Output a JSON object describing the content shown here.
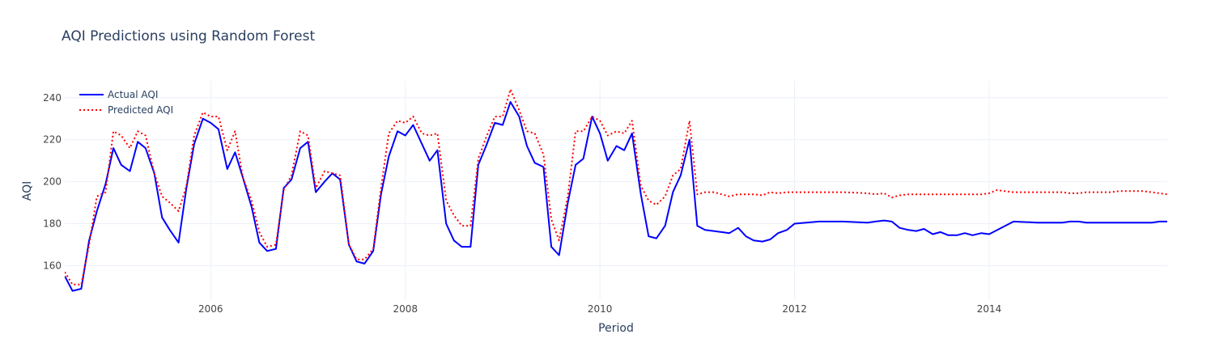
{
  "chart_data": {
    "type": "line",
    "title": "AQI Predictions using Random Forest",
    "xlabel": "Period",
    "ylabel": "AQI",
    "xlim": [
      2004.5,
      2015.83
    ],
    "ylim": [
      144,
      248
    ],
    "x_ticks": [
      2006,
      2008,
      2010,
      2012,
      2014
    ],
    "y_ticks": [
      160,
      180,
      200,
      220,
      240
    ],
    "grid": true,
    "legend_position": "top-left",
    "series": [
      {
        "name": "Actual AQI",
        "color": "#0000ff",
        "dash": "solid",
        "x": [
          2004.5,
          2004.58,
          2004.67,
          2004.75,
          2004.83,
          2004.92,
          2005.0,
          2005.08,
          2005.17,
          2005.25,
          2005.33,
          2005.42,
          2005.5,
          2005.58,
          2005.67,
          2005.75,
          2005.83,
          2005.92,
          2006.0,
          2006.08,
          2006.17,
          2006.25,
          2006.33,
          2006.42,
          2006.5,
          2006.58,
          2006.67,
          2006.75,
          2006.83,
          2006.92,
          2007.0,
          2007.08,
          2007.17,
          2007.25,
          2007.33,
          2007.42,
          2007.5,
          2007.58,
          2007.67,
          2007.75,
          2007.83,
          2007.92,
          2008.0,
          2008.08,
          2008.17,
          2008.25,
          2008.33,
          2008.42,
          2008.5,
          2008.58,
          2008.67,
          2008.75,
          2008.83,
          2008.92,
          2009.0,
          2009.08,
          2009.17,
          2009.25,
          2009.33,
          2009.42,
          2009.5,
          2009.58,
          2009.67,
          2009.75,
          2009.83,
          2009.92,
          2010.0,
          2010.08,
          2010.17,
          2010.25,
          2010.33,
          2010.42,
          2010.5,
          2010.58,
          2010.67,
          2010.75,
          2010.83,
          2010.92,
          2011.0,
          2011.08,
          2011.17,
          2011.25,
          2011.33,
          2011.42,
          2011.5,
          2011.58,
          2011.67,
          2011.75,
          2011.83,
          2011.92,
          2012.0,
          2012.25,
          2012.5,
          2012.75,
          2012.83,
          2012.92,
          2013.0,
          2013.08,
          2013.17,
          2013.25,
          2013.33,
          2013.42,
          2013.5,
          2013.58,
          2013.67,
          2013.75,
          2013.83,
          2013.92,
          2014.0,
          2014.25,
          2014.5,
          2014.75,
          2014.83,
          2014.92,
          2015.0,
          2015.08,
          2015.17,
          2015.25,
          2015.5,
          2015.67,
          2015.75,
          2015.83
        ],
        "y": [
          155,
          148,
          149,
          172,
          186,
          199,
          216,
          208,
          205,
          219,
          216,
          204,
          183,
          177,
          171,
          197,
          218,
          230,
          228,
          225,
          206,
          214,
          202,
          188,
          171,
          167,
          168,
          197,
          201,
          216,
          219,
          195,
          200,
          204,
          201,
          170,
          162,
          161,
          167,
          194,
          212,
          224,
          222,
          227,
          218,
          210,
          215,
          180,
          172,
          169,
          169,
          208,
          217,
          228,
          227,
          238,
          231,
          217,
          209,
          207,
          169,
          165,
          190,
          208,
          211,
          231,
          223,
          210,
          217,
          215,
          223,
          194,
          174,
          173,
          179,
          195,
          203,
          220,
          179,
          177,
          176.5,
          176,
          175.5,
          178,
          174,
          172,
          171.5,
          172.5,
          175.5,
          177,
          180,
          181,
          181,
          180.5,
          181,
          181.5,
          181,
          178,
          177,
          176.5,
          177.5,
          175,
          176,
          174.5,
          174.5,
          175.5,
          174.5,
          175.5,
          175,
          181,
          180.5,
          180.5,
          181,
          181,
          180.5,
          180.5,
          180.5,
          180.5,
          180.5,
          180.5,
          181,
          181
        ]
      },
      {
        "name": "Predicted AQI",
        "color": "#ff0000",
        "dash": "dot",
        "x": [
          2004.5,
          2004.58,
          2004.67,
          2004.75,
          2004.83,
          2004.92,
          2005.0,
          2005.08,
          2005.17,
          2005.25,
          2005.33,
          2005.42,
          2005.5,
          2005.58,
          2005.67,
          2005.75,
          2005.83,
          2005.92,
          2006.0,
          2006.08,
          2006.17,
          2006.25,
          2006.33,
          2006.42,
          2006.5,
          2006.58,
          2006.67,
          2006.75,
          2006.83,
          2006.92,
          2007.0,
          2007.08,
          2007.17,
          2007.25,
          2007.33,
          2007.42,
          2007.5,
          2007.58,
          2007.67,
          2007.75,
          2007.83,
          2007.92,
          2008.0,
          2008.08,
          2008.17,
          2008.25,
          2008.33,
          2008.42,
          2008.5,
          2008.58,
          2008.67,
          2008.75,
          2008.83,
          2008.92,
          2009.0,
          2009.08,
          2009.17,
          2009.25,
          2009.33,
          2009.42,
          2009.5,
          2009.58,
          2009.67,
          2009.75,
          2009.83,
          2009.92,
          2010.0,
          2010.08,
          2010.17,
          2010.25,
          2010.33,
          2010.42,
          2010.5,
          2010.58,
          2010.67,
          2010.75,
          2010.83,
          2010.92,
          2011.0,
          2011.08,
          2011.17,
          2011.25,
          2011.33,
          2011.42,
          2011.5,
          2011.58,
          2011.67,
          2011.75,
          2011.83,
          2011.92,
          2012.0,
          2012.25,
          2012.5,
          2012.75,
          2012.83,
          2012.92,
          2013.0,
          2013.08,
          2013.17,
          2013.25,
          2013.33,
          2013.5,
          2013.75,
          2013.92,
          2014.0,
          2014.08,
          2014.25,
          2014.5,
          2014.75,
          2014.83,
          2014.92,
          2015.0,
          2015.25,
          2015.33,
          2015.42,
          2015.58,
          2015.75,
          2015.83
        ],
        "y": [
          157,
          151,
          151,
          170,
          193,
          195,
          224,
          222,
          216,
          224,
          222,
          204,
          193,
          190,
          186,
          198,
          222,
          233,
          231,
          231,
          215,
          224,
          202,
          191,
          176,
          169,
          170,
          196,
          203,
          224,
          222,
          197,
          205,
          204,
          203,
          170,
          163,
          163,
          168,
          197,
          223,
          229,
          228,
          231,
          223,
          222,
          223,
          191,
          184,
          179,
          179,
          211,
          221,
          231,
          231,
          244,
          234,
          224,
          223,
          213,
          182,
          172,
          193,
          224,
          224,
          231,
          229,
          222,
          224,
          223,
          229,
          198,
          191,
          189,
          193,
          203,
          206,
          229,
          194,
          195,
          195,
          194,
          193,
          194,
          194,
          194,
          193.5,
          195,
          194.5,
          195,
          195,
          195,
          195,
          194.5,
          194,
          194.5,
          192.5,
          193.5,
          194,
          194,
          194,
          194,
          194,
          194,
          194.5,
          196,
          195,
          195,
          195,
          194.5,
          194.5,
          195,
          195,
          195.5,
          195.5,
          195.5,
          194.5,
          194
        ]
      }
    ]
  }
}
